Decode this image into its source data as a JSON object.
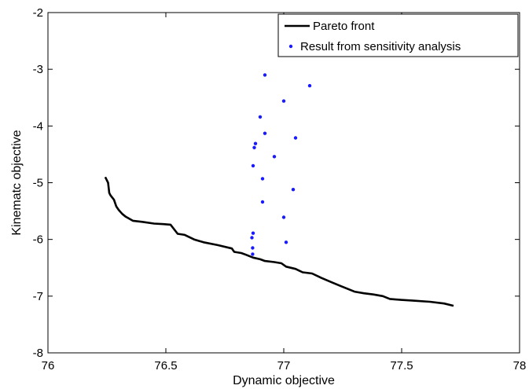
{
  "chart_data": {
    "type": "line",
    "xlabel": "Dynamic objective",
    "ylabel": "Kinematc objective",
    "xlim": [
      76,
      78
    ],
    "ylim": [
      -8,
      -2
    ],
    "xticks": [
      "76",
      "76.5",
      "77",
      "77.5",
      "78"
    ],
    "yticks": [
      "-2",
      "-3",
      "-4",
      "-5",
      "-6",
      "-7",
      "-8"
    ],
    "grid": false,
    "legend_position": "top-right",
    "series": [
      {
        "name": "Pareto front",
        "kind": "line",
        "color": "#000000",
        "x": [
          76.243,
          76.255,
          76.26,
          76.265,
          76.28,
          76.29,
          76.3,
          76.315,
          76.33,
          76.36,
          76.4,
          76.45,
          76.49,
          76.52,
          76.55,
          76.58,
          76.62,
          76.66,
          76.72,
          76.78,
          76.79,
          76.82,
          76.84,
          76.87,
          76.9,
          76.92,
          76.96,
          76.99,
          77.01,
          77.05,
          77.08,
          77.12,
          77.16,
          77.2,
          77.24,
          77.3,
          77.34,
          77.38,
          77.42,
          77.45,
          77.48,
          77.55,
          77.62,
          77.68,
          77.72
        ],
        "y": [
          -4.9,
          -5.0,
          -5.18,
          -5.22,
          -5.3,
          -5.42,
          -5.48,
          -5.55,
          -5.6,
          -5.67,
          -5.69,
          -5.72,
          -5.73,
          -5.74,
          -5.9,
          -5.92,
          -6.0,
          -6.05,
          -6.1,
          -6.16,
          -6.22,
          -6.24,
          -6.27,
          -6.32,
          -6.35,
          -6.38,
          -6.4,
          -6.42,
          -6.48,
          -6.52,
          -6.58,
          -6.6,
          -6.68,
          -6.75,
          -6.82,
          -6.92,
          -6.95,
          -6.97,
          -7.0,
          -7.05,
          -7.06,
          -7.08,
          -7.1,
          -7.13,
          -7.17
        ]
      },
      {
        "name": "Result from sensitivity analysis",
        "kind": "scatter",
        "color": "#1a1aff",
        "x": [
          76.92,
          77.11,
          77.0,
          76.9,
          76.92,
          77.05,
          76.88,
          76.875,
          76.96,
          76.87,
          76.91,
          77.04,
          76.91,
          77.0,
          76.87,
          76.865,
          77.01,
          76.868,
          76.868
        ],
        "y": [
          -3.1,
          -3.29,
          -3.56,
          -3.84,
          -4.13,
          -4.21,
          -4.31,
          -4.38,
          -4.54,
          -4.7,
          -4.93,
          -5.12,
          -5.34,
          -5.61,
          -5.89,
          -5.97,
          -6.05,
          -6.15,
          -6.26
        ]
      }
    ]
  }
}
